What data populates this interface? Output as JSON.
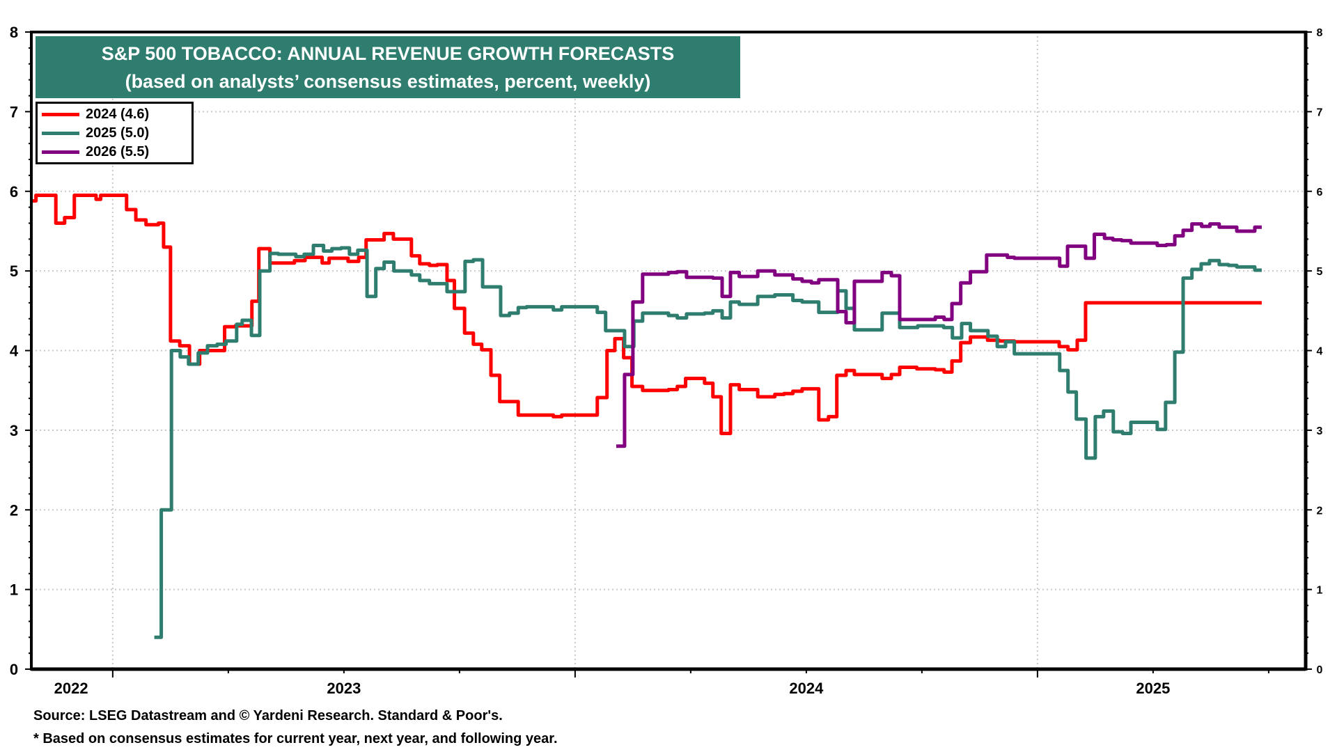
{
  "title": {
    "line1": "S&P 500 TOBACCO: ANNUAL REVENUE GROWTH FORECASTS",
    "line2": "(based on analysts’ consensus estimates, percent, weekly)"
  },
  "footer": {
    "source": "Source: LSEG Datastream and © Yardeni Research. Standard & Poor's.",
    "note": "* Based on consensus estimates for current year, next year, and following year."
  },
  "chart_data": {
    "type": "line",
    "step": true,
    "title": "S&P 500 TOBACCO: ANNUAL REVENUE GROWTH FORECASTS",
    "subtitle": "(based on analysts’ consensus estimates, percent, weekly)",
    "xlabel": "",
    "ylabel": "",
    "x_unit": "decimal year",
    "xlim": [
      2022.824,
      2025.58
    ],
    "ylim": [
      0,
      8
    ],
    "y_ticks": [
      0,
      1,
      2,
      3,
      4,
      5,
      6,
      7,
      8
    ],
    "y_minor_step": 0.2,
    "x_year_boundaries": [
      2023,
      2024,
      2025
    ],
    "x_quarter_ticks": [
      2022.75,
      2023,
      2023.25,
      2023.5,
      2023.75,
      2024,
      2024.25,
      2024.5,
      2024.75,
      2025,
      2025.25,
      2025.5
    ],
    "x_tick_labels": [
      {
        "label": "2022",
        "at": 2022.91
      },
      {
        "label": "2023",
        "at": 2023.5
      },
      {
        "label": "2024",
        "at": 2024.5
      },
      {
        "label": "2025",
        "at": 2025.25
      }
    ],
    "grid": "dotted, major y and yearly x",
    "legend_position": "top-left",
    "right_axis_mirror": true,
    "series": [
      {
        "name": "2024 (4.6)",
        "color": "#FF0000",
        "end": 2025.485,
        "points": [
          [
            2022.824,
            5.88
          ],
          [
            2022.834,
            5.95
          ],
          [
            2022.877,
            5.6
          ],
          [
            2022.896,
            5.67
          ],
          [
            2022.917,
            5.95
          ],
          [
            2022.964,
            5.9
          ],
          [
            2022.974,
            5.95
          ],
          [
            2023.03,
            5.77
          ],
          [
            2023.05,
            5.64
          ],
          [
            2023.072,
            5.58
          ],
          [
            2023.099,
            5.6
          ],
          [
            2023.11,
            5.3
          ],
          [
            2023.125,
            4.12
          ],
          [
            2023.145,
            4.06
          ],
          [
            2023.166,
            3.83
          ],
          [
            2023.188,
            4.0
          ],
          [
            2023.242,
            4.3
          ],
          [
            2023.265,
            4.31
          ],
          [
            2023.301,
            4.62
          ],
          [
            2023.316,
            5.28
          ],
          [
            2023.34,
            5.1
          ],
          [
            2023.393,
            5.13
          ],
          [
            2023.416,
            5.17
          ],
          [
            2023.453,
            5.1
          ],
          [
            2023.468,
            5.16
          ],
          [
            2023.509,
            5.12
          ],
          [
            2023.532,
            5.17
          ],
          [
            2023.548,
            5.39
          ],
          [
            2023.587,
            5.47
          ],
          [
            2023.607,
            5.4
          ],
          [
            2023.646,
            5.19
          ],
          [
            2023.664,
            5.09
          ],
          [
            2023.685,
            5.07
          ],
          [
            2023.702,
            5.08
          ],
          [
            2023.723,
            4.88
          ],
          [
            2023.739,
            4.53
          ],
          [
            2023.761,
            4.22
          ],
          [
            2023.78,
            4.08
          ],
          [
            2023.798,
            4.01
          ],
          [
            2023.818,
            3.69
          ],
          [
            2023.837,
            3.36
          ],
          [
            2023.877,
            3.19
          ],
          [
            2023.953,
            3.17
          ],
          [
            2023.971,
            3.19
          ],
          [
            2024.048,
            3.41
          ],
          [
            2024.069,
            4.0
          ],
          [
            2024.086,
            4.15
          ],
          [
            2024.105,
            3.91
          ],
          [
            2024.123,
            3.55
          ],
          [
            2024.146,
            3.5
          ],
          [
            2024.202,
            3.51
          ],
          [
            2024.221,
            3.55
          ],
          [
            2024.239,
            3.65
          ],
          [
            2024.28,
            3.59
          ],
          [
            2024.298,
            3.42
          ],
          [
            2024.316,
            2.96
          ],
          [
            2024.336,
            3.57
          ],
          [
            2024.355,
            3.51
          ],
          [
            2024.395,
            3.42
          ],
          [
            2024.432,
            3.45
          ],
          [
            2024.452,
            3.46
          ],
          [
            2024.471,
            3.49
          ],
          [
            2024.491,
            3.52
          ],
          [
            2024.527,
            3.13
          ],
          [
            2024.548,
            3.17
          ],
          [
            2024.566,
            3.69
          ],
          [
            2024.586,
            3.75
          ],
          [
            2024.604,
            3.7
          ],
          [
            2024.664,
            3.65
          ],
          [
            2024.684,
            3.7
          ],
          [
            2024.702,
            3.79
          ],
          [
            2024.739,
            3.77
          ],
          [
            2024.779,
            3.76
          ],
          [
            2024.798,
            3.73
          ],
          [
            2024.815,
            3.87
          ],
          [
            2024.834,
            4.1
          ],
          [
            2024.855,
            4.17
          ],
          [
            2024.892,
            4.13
          ],
          [
            2024.917,
            4.12
          ],
          [
            2024.95,
            4.11
          ],
          [
            2025.047,
            4.05
          ],
          [
            2025.066,
            4.01
          ],
          [
            2025.086,
            4.13
          ],
          [
            2025.104,
            4.6
          ]
        ]
      },
      {
        "name": "2025 (5.0)",
        "color": "#2E7D6F",
        "end": 2025.485,
        "points": [
          [
            2023.09,
            0.4
          ],
          [
            2023.105,
            2.0
          ],
          [
            2023.127,
            4.0
          ],
          [
            2023.146,
            3.92
          ],
          [
            2023.164,
            3.83
          ],
          [
            2023.185,
            3.97
          ],
          [
            2023.205,
            4.06
          ],
          [
            2023.226,
            4.08
          ],
          [
            2023.245,
            4.12
          ],
          [
            2023.268,
            4.33
          ],
          [
            2023.28,
            4.38
          ],
          [
            2023.3,
            4.19
          ],
          [
            2023.318,
            5.0
          ],
          [
            2023.34,
            5.22
          ],
          [
            2023.358,
            5.21
          ],
          [
            2023.396,
            5.18
          ],
          [
            2023.414,
            5.21
          ],
          [
            2023.434,
            5.32
          ],
          [
            2023.456,
            5.25
          ],
          [
            2023.474,
            5.28
          ],
          [
            2023.494,
            5.29
          ],
          [
            2023.512,
            5.21
          ],
          [
            2023.53,
            5.26
          ],
          [
            2023.55,
            4.68
          ],
          [
            2023.569,
            5.03
          ],
          [
            2023.587,
            5.11
          ],
          [
            2023.608,
            5.0
          ],
          [
            2023.646,
            4.95
          ],
          [
            2023.664,
            4.88
          ],
          [
            2023.685,
            4.84
          ],
          [
            2023.723,
            4.74
          ],
          [
            2023.762,
            5.12
          ],
          [
            2023.78,
            5.14
          ],
          [
            2023.8,
            4.8
          ],
          [
            2023.839,
            4.44
          ],
          [
            2023.858,
            4.47
          ],
          [
            2023.877,
            4.54
          ],
          [
            2023.895,
            4.55
          ],
          [
            2023.953,
            4.51
          ],
          [
            2023.971,
            4.55
          ],
          [
            2024.048,
            4.48
          ],
          [
            2024.066,
            4.25
          ],
          [
            2024.107,
            4.05
          ],
          [
            2024.127,
            4.37
          ],
          [
            2024.146,
            4.47
          ],
          [
            2024.202,
            4.44
          ],
          [
            2024.221,
            4.41
          ],
          [
            2024.241,
            4.46
          ],
          [
            2024.28,
            4.47
          ],
          [
            2024.298,
            4.5
          ],
          [
            2024.318,
            4.41
          ],
          [
            2024.336,
            4.61
          ],
          [
            2024.355,
            4.58
          ],
          [
            2024.395,
            4.68
          ],
          [
            2024.432,
            4.7
          ],
          [
            2024.471,
            4.63
          ],
          [
            2024.491,
            4.61
          ],
          [
            2024.527,
            4.48
          ],
          [
            2024.568,
            4.75
          ],
          [
            2024.586,
            4.53
          ],
          [
            2024.604,
            4.26
          ],
          [
            2024.664,
            4.47
          ],
          [
            2024.702,
            4.29
          ],
          [
            2024.741,
            4.31
          ],
          [
            2024.797,
            4.29
          ],
          [
            2024.816,
            4.16
          ],
          [
            2024.836,
            4.34
          ],
          [
            2024.855,
            4.25
          ],
          [
            2024.893,
            4.18
          ],
          [
            2024.913,
            4.05
          ],
          [
            2024.931,
            4.11
          ],
          [
            2024.95,
            3.96
          ],
          [
            2025.048,
            3.75
          ],
          [
            2025.066,
            3.48
          ],
          [
            2025.084,
            3.14
          ],
          [
            2025.105,
            2.65
          ],
          [
            2025.125,
            3.17
          ],
          [
            2025.143,
            3.24
          ],
          [
            2025.164,
            2.98
          ],
          [
            2025.184,
            2.96
          ],
          [
            2025.202,
            3.1
          ],
          [
            2025.259,
            3.01
          ],
          [
            2025.277,
            3.35
          ],
          [
            2025.297,
            3.98
          ],
          [
            2025.315,
            4.91
          ],
          [
            2025.334,
            5.02
          ],
          [
            2025.354,
            5.09
          ],
          [
            2025.372,
            5.13
          ],
          [
            2025.393,
            5.08
          ],
          [
            2025.413,
            5.07
          ],
          [
            2025.431,
            5.05
          ],
          [
            2025.47,
            5.01
          ]
        ]
      },
      {
        "name": "2026 (5.5)",
        "color": "#800080",
        "end": 2025.485,
        "points": [
          [
            2024.089,
            2.8
          ],
          [
            2024.107,
            3.7
          ],
          [
            2024.125,
            4.61
          ],
          [
            2024.146,
            4.96
          ],
          [
            2024.202,
            4.98
          ],
          [
            2024.221,
            4.99
          ],
          [
            2024.241,
            4.92
          ],
          [
            2024.298,
            4.91
          ],
          [
            2024.318,
            4.68
          ],
          [
            2024.336,
            4.98
          ],
          [
            2024.355,
            4.93
          ],
          [
            2024.395,
            5.0
          ],
          [
            2024.432,
            4.95
          ],
          [
            2024.471,
            4.9
          ],
          [
            2024.491,
            4.87
          ],
          [
            2024.511,
            4.85
          ],
          [
            2024.527,
            4.89
          ],
          [
            2024.568,
            4.49
          ],
          [
            2024.586,
            4.35
          ],
          [
            2024.604,
            4.87
          ],
          [
            2024.664,
            4.98
          ],
          [
            2024.684,
            4.94
          ],
          [
            2024.702,
            4.39
          ],
          [
            2024.779,
            4.42
          ],
          [
            2024.798,
            4.39
          ],
          [
            2024.815,
            4.59
          ],
          [
            2024.834,
            4.85
          ],
          [
            2024.855,
            4.99
          ],
          [
            2024.89,
            5.2
          ],
          [
            2024.935,
            5.17
          ],
          [
            2024.95,
            5.16
          ],
          [
            2025.048,
            5.06
          ],
          [
            2025.065,
            5.31
          ],
          [
            2025.104,
            5.16
          ],
          [
            2025.123,
            5.46
          ],
          [
            2025.145,
            5.41
          ],
          [
            2025.163,
            5.39
          ],
          [
            2025.182,
            5.38
          ],
          [
            2025.202,
            5.35
          ],
          [
            2025.259,
            5.32
          ],
          [
            2025.279,
            5.33
          ],
          [
            2025.297,
            5.44
          ],
          [
            2025.315,
            5.51
          ],
          [
            2025.334,
            5.59
          ],
          [
            2025.355,
            5.56
          ],
          [
            2025.373,
            5.59
          ],
          [
            2025.393,
            5.55
          ],
          [
            2025.431,
            5.5
          ],
          [
            2025.47,
            5.55
          ]
        ]
      }
    ]
  }
}
